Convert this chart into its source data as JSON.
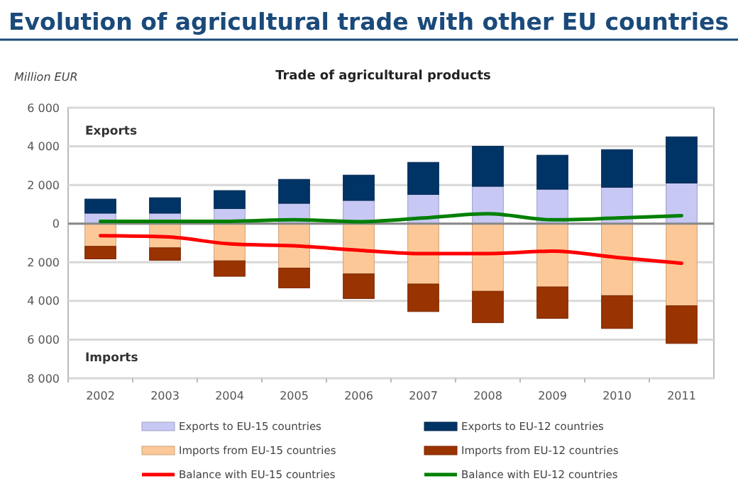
{
  "chart_data": {
    "type": "bar",
    "title": "Evolution of agricultural trade with other EU countries",
    "subtitle": "Trade of agricultural products",
    "ylabel": "Million EUR",
    "annotations": [
      "Exports",
      "Imports"
    ],
    "categories": [
      "2002",
      "2003",
      "2004",
      "2005",
      "2006",
      "2007",
      "2008",
      "2009",
      "2010",
      "2011"
    ],
    "stacked": true,
    "ylim": [
      -8000,
      6000
    ],
    "yticks": [
      {
        "value": -8000,
        "label": "8 000"
      },
      {
        "value": -6000,
        "label": "6 000"
      },
      {
        "value": -4000,
        "label": "4 000"
      },
      {
        "value": -2000,
        "label": "2 000"
      },
      0,
      {
        "value": 2000,
        "label": "2 000"
      },
      {
        "value": 4000,
        "label": "4 000"
      },
      {
        "value": 6000,
        "label": "6 000"
      }
    ],
    "grid": "y",
    "legend": "bottom",
    "series": [
      {
        "name": "Exports to EU-15 countries",
        "color": "#c8c8f5",
        "values": [
          540,
          540,
          780,
          1050,
          1200,
          1510,
          1930,
          1780,
          1880,
          2100
        ]
      },
      {
        "name": "Exports to EU-12 countries",
        "color": "#003366",
        "values": [
          730,
          800,
          930,
          1240,
          1310,
          1660,
          2070,
          1760,
          1950,
          2390
        ]
      },
      {
        "name": "Imports from EU-15 countries",
        "color": "#fdc897",
        "values": [
          -1175,
          -1250,
          -1925,
          -2300,
          -2600,
          -3125,
          -3500,
          -3275,
          -3725,
          -4250
        ]
      },
      {
        "name": "Imports from EU-12 countries",
        "color": "#993300",
        "values": [
          -650,
          -650,
          -800,
          -1025,
          -1275,
          -1425,
          -1625,
          -1625,
          -1700,
          -1950
        ]
      },
      {
        "name": "Balance with EU-15 countries",
        "type": "line",
        "color": "#ff0000",
        "values": [
          -625,
          -675,
          -1050,
          -1150,
          -1375,
          -1550,
          -1550,
          -1425,
          -1750,
          -2050
        ]
      },
      {
        "name": "Balance with EU-12 countries",
        "type": "line",
        "color": "#008000",
        "values": [
          120,
          120,
          120,
          200,
          100,
          290,
          510,
          200,
          290,
          410
        ]
      }
    ]
  }
}
